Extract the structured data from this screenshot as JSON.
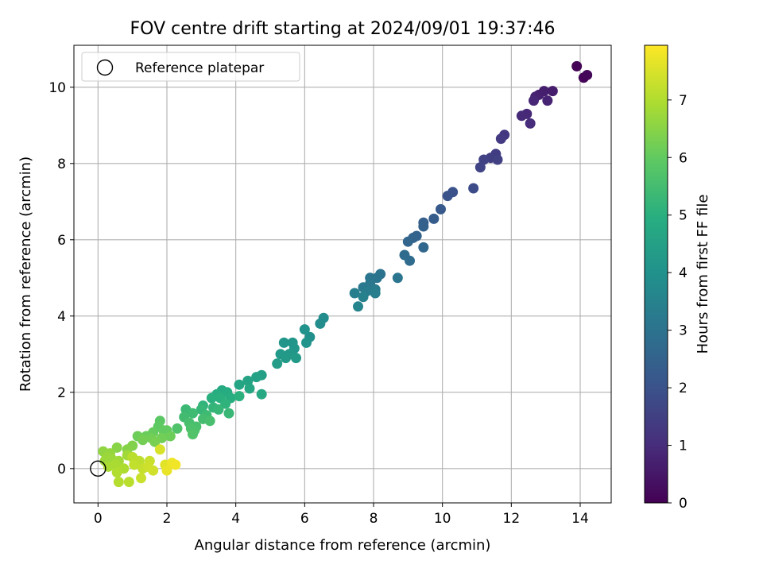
{
  "chart_data": {
    "type": "scatter",
    "title": "FOV centre drift starting at 2024/09/01 19:37:46",
    "xlabel": "Angular distance from reference (arcmin)",
    "ylabel": "Rotation from reference (arcmin)",
    "xlim": [
      -0.7,
      14.9
    ],
    "ylim": [
      -0.9,
      11.1
    ],
    "xticks": [
      0,
      2,
      4,
      6,
      8,
      10,
      12,
      14
    ],
    "yticks": [
      0,
      2,
      4,
      6,
      8,
      10
    ],
    "grid": true,
    "legend": {
      "placement": "top-left",
      "entries": [
        "Reference platepar"
      ]
    },
    "reference_point": {
      "x": 0,
      "y": 0,
      "marker": "hollow-circle"
    },
    "colorbar": {
      "label": "Hours from first FF file",
      "colormap": "viridis",
      "range": [
        0,
        7.95
      ],
      "ticks": [
        0,
        1,
        2,
        3,
        4,
        5,
        6,
        7
      ]
    },
    "series": [
      {
        "points": [
          [
            13.9,
            10.55,
            0.05
          ],
          [
            14.1,
            10.25,
            0.1
          ],
          [
            14.2,
            10.32,
            0.12
          ],
          [
            13.2,
            9.9,
            0.6
          ],
          [
            12.95,
            9.9,
            0.65
          ],
          [
            12.8,
            9.8,
            0.7
          ],
          [
            12.7,
            9.75,
            0.75
          ],
          [
            13.05,
            9.65,
            0.8
          ],
          [
            12.65,
            9.65,
            0.85
          ],
          [
            12.45,
            9.3,
            0.9
          ],
          [
            12.3,
            9.25,
            0.95
          ],
          [
            12.55,
            9.05,
            1.0
          ],
          [
            11.8,
            8.75,
            1.3
          ],
          [
            11.7,
            8.65,
            1.35
          ],
          [
            11.55,
            8.25,
            1.4
          ],
          [
            11.4,
            8.15,
            1.45
          ],
          [
            11.6,
            8.1,
            1.5
          ],
          [
            11.2,
            8.1,
            1.55
          ],
          [
            11.1,
            7.9,
            1.6
          ],
          [
            10.9,
            7.35,
            1.8
          ],
          [
            10.3,
            7.25,
            2.0
          ],
          [
            10.15,
            7.15,
            2.05
          ],
          [
            9.95,
            6.8,
            2.2
          ],
          [
            9.75,
            6.55,
            2.3
          ],
          [
            9.45,
            6.45,
            2.4
          ],
          [
            9.45,
            6.35,
            2.45
          ],
          [
            9.25,
            6.1,
            2.5
          ],
          [
            9.15,
            6.05,
            2.55
          ],
          [
            9.0,
            5.95,
            2.6
          ],
          [
            9.45,
            5.8,
            2.65
          ],
          [
            8.9,
            5.6,
            2.75
          ],
          [
            9.05,
            5.45,
            2.8
          ],
          [
            8.2,
            5.1,
            3.0
          ],
          [
            8.1,
            5.0,
            3.05
          ],
          [
            7.9,
            5.0,
            3.1
          ],
          [
            8.7,
            5.0,
            3.1
          ],
          [
            7.9,
            4.85,
            3.15
          ],
          [
            7.7,
            4.75,
            3.2
          ],
          [
            8.05,
            4.7,
            3.25
          ],
          [
            7.8,
            4.65,
            3.3
          ],
          [
            8.05,
            4.6,
            3.35
          ],
          [
            7.45,
            4.6,
            3.4
          ],
          [
            7.7,
            4.5,
            3.45
          ],
          [
            7.55,
            4.25,
            3.55
          ],
          [
            6.55,
            3.95,
            3.8
          ],
          [
            6.45,
            3.8,
            3.85
          ],
          [
            6.15,
            3.45,
            3.95
          ],
          [
            6.0,
            3.65,
            4.0
          ],
          [
            6.05,
            3.3,
            4.05
          ],
          [
            5.65,
            3.3,
            4.1
          ],
          [
            5.4,
            3.3,
            4.1
          ],
          [
            5.7,
            3.15,
            4.15
          ],
          [
            5.55,
            3.0,
            4.2
          ],
          [
            5.3,
            3.0,
            4.25
          ],
          [
            5.75,
            2.9,
            4.3
          ],
          [
            5.45,
            2.9,
            4.3
          ],
          [
            5.2,
            2.75,
            4.35
          ],
          [
            4.75,
            2.45,
            4.5
          ],
          [
            4.6,
            2.4,
            4.55
          ],
          [
            4.35,
            2.3,
            4.6
          ],
          [
            4.1,
            2.2,
            4.65
          ],
          [
            4.4,
            2.1,
            4.7
          ],
          [
            4.75,
            1.95,
            4.75
          ],
          [
            3.6,
            2.05,
            4.8
          ],
          [
            3.75,
            2.0,
            4.85
          ],
          [
            3.45,
            1.95,
            4.9
          ],
          [
            3.85,
            1.85,
            4.95
          ],
          [
            3.55,
            1.85,
            5.0
          ],
          [
            3.3,
            1.85,
            5.0
          ],
          [
            4.1,
            1.9,
            5.05
          ],
          [
            3.7,
            1.7,
            5.1
          ],
          [
            3.05,
            1.65,
            5.15
          ],
          [
            3.35,
            1.6,
            5.2
          ],
          [
            3.0,
            1.55,
            5.25
          ],
          [
            3.5,
            1.55,
            5.25
          ],
          [
            3.8,
            1.45,
            5.3
          ],
          [
            2.55,
            1.55,
            5.35
          ],
          [
            2.75,
            1.45,
            5.4
          ],
          [
            3.15,
            1.4,
            5.4
          ],
          [
            2.5,
            1.35,
            5.45
          ],
          [
            3.05,
            1.3,
            5.5
          ],
          [
            3.25,
            1.25,
            5.55
          ],
          [
            2.65,
            1.2,
            5.55
          ],
          [
            2.85,
            1.1,
            5.6
          ],
          [
            2.7,
            1.05,
            5.65
          ],
          [
            2.8,
            1.0,
            5.65
          ],
          [
            2.3,
            1.05,
            5.7
          ],
          [
            2.75,
            0.9,
            5.75
          ],
          [
            1.8,
            1.25,
            5.9
          ],
          [
            1.75,
            1.1,
            5.95
          ],
          [
            1.9,
            1.0,
            6.0
          ],
          [
            2.0,
            1.0,
            6.0
          ],
          [
            1.6,
            0.95,
            6.05
          ],
          [
            1.4,
            0.85,
            6.1
          ],
          [
            1.15,
            0.85,
            6.15
          ],
          [
            2.1,
            0.85,
            6.15
          ],
          [
            1.85,
            0.8,
            6.2
          ],
          [
            1.55,
            0.8,
            6.2
          ],
          [
            1.3,
            0.75,
            6.25
          ],
          [
            1.65,
            0.7,
            6.3
          ],
          [
            1.0,
            0.6,
            6.4
          ],
          [
            0.85,
            0.5,
            6.45
          ],
          [
            0.55,
            0.55,
            6.5
          ],
          [
            0.15,
            0.45,
            6.6
          ],
          [
            0.35,
            0.4,
            6.65
          ],
          [
            0.25,
            0.3,
            6.7
          ],
          [
            0.4,
            0.25,
            6.75
          ],
          [
            0.2,
            0.2,
            6.75
          ],
          [
            0.6,
            0.2,
            6.8
          ],
          [
            0.85,
            0.35,
            6.8
          ],
          [
            0.3,
            0.05,
            6.9
          ],
          [
            0.5,
            0.1,
            6.9
          ],
          [
            0.75,
            0.0,
            6.95
          ],
          [
            0.55,
            -0.1,
            7.0
          ],
          [
            0.6,
            -0.35,
            7.05
          ],
          [
            0.9,
            -0.35,
            7.1
          ],
          [
            1.0,
            0.3,
            7.1
          ],
          [
            1.2,
            0.2,
            7.15
          ],
          [
            1.05,
            0.1,
            7.2
          ],
          [
            1.3,
            0.0,
            7.25
          ],
          [
            1.25,
            -0.25,
            7.3
          ],
          [
            1.5,
            0.2,
            7.3
          ],
          [
            1.45,
            0.05,
            7.35
          ],
          [
            1.6,
            -0.05,
            7.4
          ],
          [
            1.8,
            0.5,
            7.5
          ],
          [
            1.95,
            0.1,
            7.6
          ],
          [
            2.0,
            -0.05,
            7.7
          ],
          [
            2.15,
            0.15,
            7.75
          ],
          [
            2.25,
            0.1,
            7.8
          ]
        ]
      }
    ]
  }
}
